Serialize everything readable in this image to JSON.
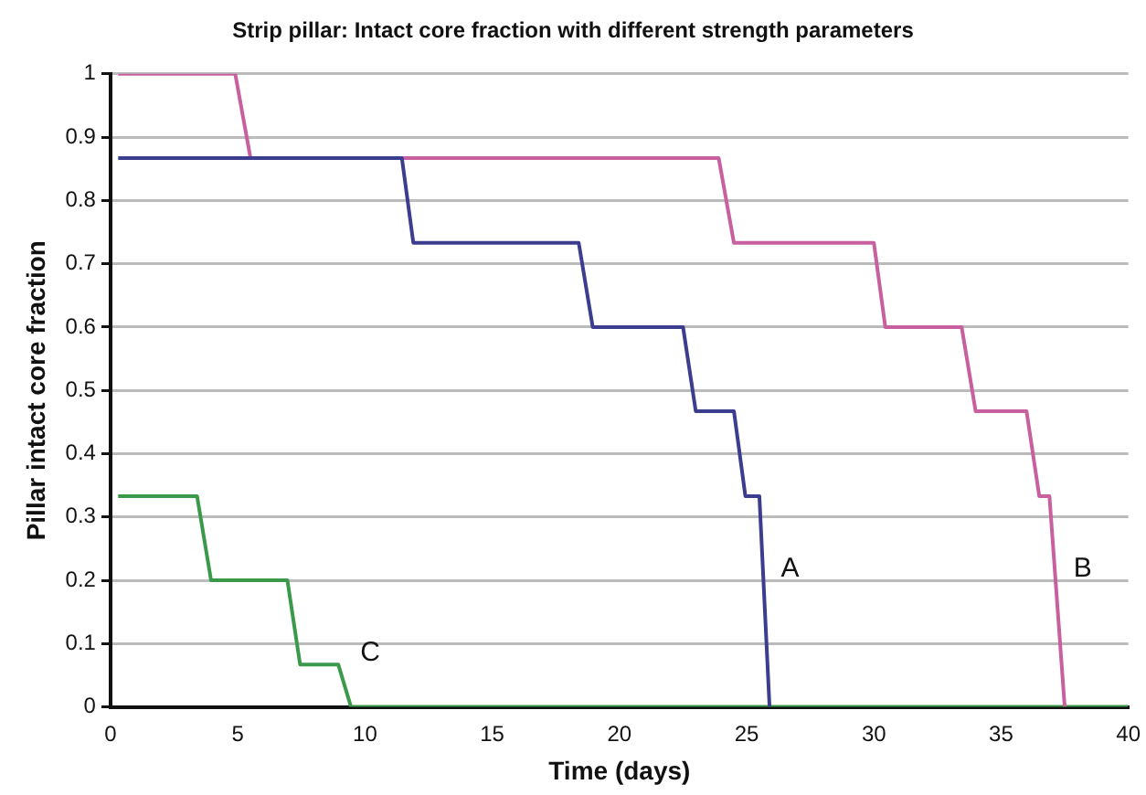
{
  "chart_data": {
    "type": "line",
    "title": "Strip pillar: Intact core fraction with different strength parameters",
    "xlabel": "Time (days)",
    "ylabel": "Pillar intact core fraction",
    "xlim": [
      0,
      40
    ],
    "xticks": [
      0,
      5,
      10,
      15,
      20,
      25,
      30,
      35,
      40
    ],
    "ylim": [
      0,
      1
    ],
    "yticks": [
      0,
      0.1,
      0.2,
      0.3,
      0.4,
      0.5,
      0.6,
      0.7,
      0.8,
      0.9,
      1
    ],
    "grid": "y",
    "legend": false,
    "marker": "none",
    "line_style": "solid",
    "series": [
      {
        "name": "A",
        "color": "#3d3d8f",
        "x": [
          0.3,
          11.45,
          11.9,
          18.4,
          18.95,
          22.5,
          23.0,
          24.5,
          24.95,
          25.5,
          25.9
        ],
        "values": [
          0.867,
          0.867,
          0.733,
          0.733,
          0.6,
          0.6,
          0.467,
          0.467,
          0.333,
          0.333,
          0
        ]
      },
      {
        "name": "B",
        "color": "#c8609f",
        "x": [
          0.3,
          4.9,
          5.5,
          23.9,
          24.5,
          30.0,
          30.45,
          33.45,
          34.0,
          36.0,
          36.5,
          36.9,
          37.5
        ],
        "values": [
          1,
          1,
          0.867,
          0.867,
          0.733,
          0.733,
          0.6,
          0.6,
          0.467,
          0.467,
          0.333,
          0.333,
          0
        ]
      },
      {
        "name": "C",
        "color": "#3a9a4a",
        "x": [
          0.3,
          3.4,
          3.95,
          6.95,
          7.45,
          8.95,
          9.45,
          40
        ],
        "values": [
          0.333,
          0.333,
          0.2,
          0.2,
          0.067,
          0.067,
          0,
          0
        ]
      }
    ]
  }
}
